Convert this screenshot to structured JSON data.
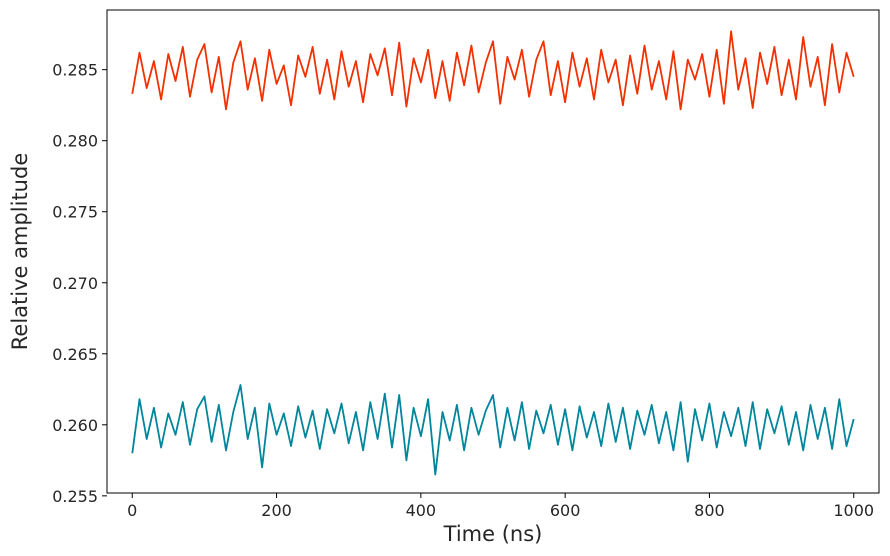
{
  "chart_data": {
    "type": "line",
    "title": "",
    "xlabel": "Time (ns)",
    "ylabel": "Relative amplitude",
    "xlim": [
      -35,
      1035
    ],
    "ylim": [
      0.2552,
      0.2892
    ],
    "x_ticks": [
      {
        "value": 0,
        "label": "0"
      },
      {
        "value": 200,
        "label": "200"
      },
      {
        "value": 400,
        "label": "400"
      },
      {
        "value": 600,
        "label": "600"
      },
      {
        "value": 800,
        "label": "800"
      },
      {
        "value": 1000,
        "label": "1000"
      }
    ],
    "y_ticks": [
      {
        "value": 0.255,
        "label": "0.255"
      },
      {
        "value": 0.26,
        "label": "0.260"
      },
      {
        "value": 0.265,
        "label": "0.265"
      },
      {
        "value": 0.27,
        "label": "0.270"
      },
      {
        "value": 0.275,
        "label": "0.275"
      },
      {
        "value": 0.28,
        "label": "0.280"
      },
      {
        "value": 0.285,
        "label": "0.285"
      }
    ],
    "grid": false,
    "legend": "none",
    "series": [
      {
        "color": "#f23000",
        "x": [
          0,
          10,
          20,
          30,
          40,
          50,
          60,
          70,
          80,
          90,
          100,
          110,
          120,
          130,
          140,
          150,
          160,
          170,
          180,
          190,
          200,
          210,
          220,
          230,
          240,
          250,
          260,
          270,
          280,
          290,
          300,
          310,
          320,
          330,
          340,
          350,
          360,
          370,
          380,
          390,
          400,
          410,
          420,
          430,
          440,
          450,
          460,
          470,
          480,
          490,
          500,
          510,
          520,
          530,
          540,
          550,
          560,
          570,
          580,
          590,
          600,
          610,
          620,
          630,
          640,
          650,
          660,
          670,
          680,
          690,
          700,
          710,
          720,
          730,
          740,
          750,
          760,
          770,
          780,
          790,
          800,
          810,
          820,
          830,
          840,
          850,
          860,
          870,
          880,
          890,
          900,
          910,
          920,
          930,
          940,
          950,
          960,
          970,
          980,
          990,
          1000
        ],
        "y": [
          0.2833,
          0.2862,
          0.2837,
          0.2856,
          0.2829,
          0.2861,
          0.2842,
          0.2866,
          0.2831,
          0.2857,
          0.2868,
          0.2834,
          0.2859,
          0.2822,
          0.2855,
          0.287,
          0.2836,
          0.2858,
          0.2828,
          0.2864,
          0.284,
          0.2853,
          0.2825,
          0.286,
          0.2845,
          0.2866,
          0.2833,
          0.2857,
          0.2829,
          0.2863,
          0.2838,
          0.2856,
          0.2827,
          0.2861,
          0.2846,
          0.2865,
          0.2832,
          0.2869,
          0.2824,
          0.2858,
          0.2841,
          0.2864,
          0.283,
          0.2856,
          0.2828,
          0.2862,
          0.2839,
          0.2867,
          0.2834,
          0.2855,
          0.287,
          0.2826,
          0.2859,
          0.2843,
          0.2864,
          0.2831,
          0.2857,
          0.287,
          0.2832,
          0.2856,
          0.2827,
          0.2862,
          0.2838,
          0.2858,
          0.2829,
          0.2864,
          0.2841,
          0.2857,
          0.2825,
          0.286,
          0.2833,
          0.2867,
          0.2836,
          0.2856,
          0.2829,
          0.2863,
          0.2822,
          0.2857,
          0.2843,
          0.2861,
          0.2831,
          0.2864,
          0.2826,
          0.2877,
          0.2836,
          0.2858,
          0.2823,
          0.2862,
          0.284,
          0.2866,
          0.2832,
          0.2857,
          0.2829,
          0.2873,
          0.2838,
          0.2859,
          0.2825,
          0.2868,
          0.2834,
          0.2862,
          0.2845
        ]
      },
      {
        "color": "#00869c",
        "x": [
          0,
          10,
          20,
          30,
          40,
          50,
          60,
          70,
          80,
          90,
          100,
          110,
          120,
          130,
          140,
          150,
          160,
          170,
          180,
          190,
          200,
          210,
          220,
          230,
          240,
          250,
          260,
          270,
          280,
          290,
          300,
          310,
          320,
          330,
          340,
          350,
          360,
          370,
          380,
          390,
          400,
          410,
          420,
          430,
          440,
          450,
          460,
          470,
          480,
          490,
          500,
          510,
          520,
          530,
          540,
          550,
          560,
          570,
          580,
          590,
          600,
          610,
          620,
          630,
          640,
          650,
          660,
          670,
          680,
          690,
          700,
          710,
          720,
          730,
          740,
          750,
          760,
          770,
          780,
          790,
          800,
          810,
          820,
          830,
          840,
          850,
          860,
          870,
          880,
          890,
          900,
          910,
          920,
          930,
          940,
          950,
          960,
          970,
          980,
          990,
          1000
        ],
        "y": [
          0.258,
          0.2618,
          0.259,
          0.2612,
          0.2584,
          0.2608,
          0.2593,
          0.2616,
          0.2586,
          0.2611,
          0.262,
          0.2588,
          0.2614,
          0.2582,
          0.2609,
          0.2628,
          0.259,
          0.2612,
          0.257,
          0.2615,
          0.2593,
          0.2608,
          0.2585,
          0.2613,
          0.2591,
          0.261,
          0.2583,
          0.2611,
          0.2594,
          0.2615,
          0.2587,
          0.2609,
          0.2582,
          0.2616,
          0.259,
          0.2622,
          0.2584,
          0.2621,
          0.2575,
          0.2612,
          0.2592,
          0.2618,
          0.2565,
          0.2609,
          0.2589,
          0.2614,
          0.2582,
          0.2612,
          0.2593,
          0.261,
          0.2621,
          0.2584,
          0.2612,
          0.2589,
          0.2616,
          0.2583,
          0.261,
          0.2594,
          0.2614,
          0.2586,
          0.2611,
          0.2582,
          0.2613,
          0.2591,
          0.2609,
          0.2585,
          0.2615,
          0.2588,
          0.2612,
          0.2583,
          0.261,
          0.2593,
          0.2614,
          0.2587,
          0.2609,
          0.2582,
          0.2616,
          0.2574,
          0.2611,
          0.2589,
          0.2615,
          0.2584,
          0.2609,
          0.2592,
          0.2612,
          0.2585,
          0.2616,
          0.2583,
          0.2611,
          0.2594,
          0.2613,
          0.2586,
          0.2609,
          0.2582,
          0.2614,
          0.259,
          0.2612,
          0.2583,
          0.2618,
          0.2585,
          0.2604
        ]
      }
    ]
  }
}
